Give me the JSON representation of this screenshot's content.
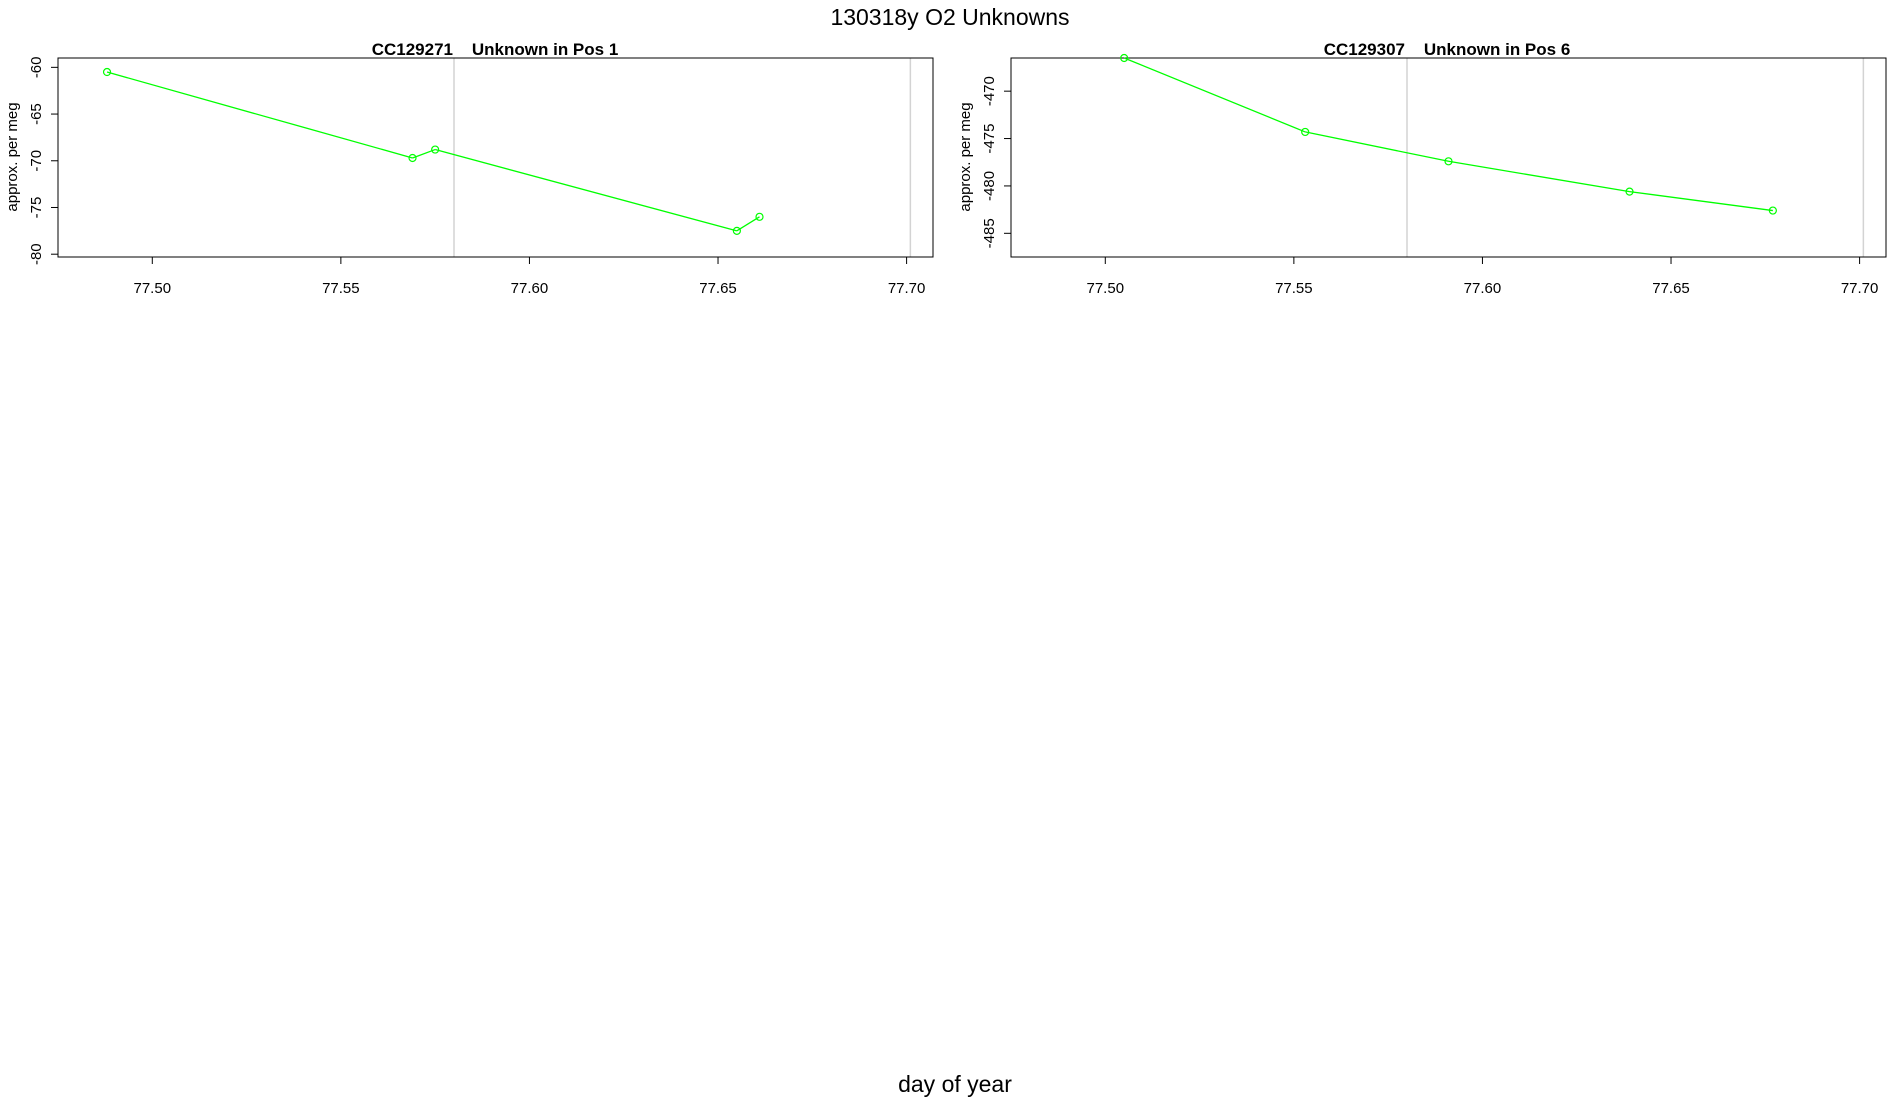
{
  "figure": {
    "title": "130318y  O2 Unknowns",
    "xlabel": "day of year"
  },
  "chart_data": [
    {
      "type": "line",
      "title": "CC129271    Unknown in Pos 1",
      "ylabel": "approx. per meg",
      "xlim": [
        77.475,
        77.707
      ],
      "ylim": [
        -80.3,
        -59.0
      ],
      "x_ticks": [
        "77.50",
        "77.55",
        "77.60",
        "77.65",
        "77.70"
      ],
      "y_ticks": [
        "-60",
        "-65",
        "-70",
        "-75",
        "-80"
      ],
      "vlines": [
        77.58,
        77.701
      ],
      "series_color": "#00ff00",
      "x": [
        77.488,
        77.569,
        77.575,
        77.655,
        77.661
      ],
      "y": [
        -60.5,
        -69.7,
        -68.8,
        -77.5,
        -76.0
      ]
    },
    {
      "type": "line",
      "title": "CC129307    Unknown in Pos 6",
      "ylabel": "approx. per meg",
      "xlim": [
        77.475,
        77.707
      ],
      "ylim": [
        -487.5,
        -466.5
      ],
      "x_ticks": [
        "77.50",
        "77.55",
        "77.60",
        "77.65",
        "77.70"
      ],
      "y_ticks": [
        "-470",
        "-475",
        "-480",
        "-485"
      ],
      "vlines": [
        77.58,
        77.701
      ],
      "series_color": "#00ff00",
      "x": [
        77.505,
        77.553,
        77.591,
        77.639,
        77.677
      ],
      "y": [
        -466.5,
        -474.3,
        -477.4,
        -480.6,
        -482.6
      ]
    }
  ]
}
